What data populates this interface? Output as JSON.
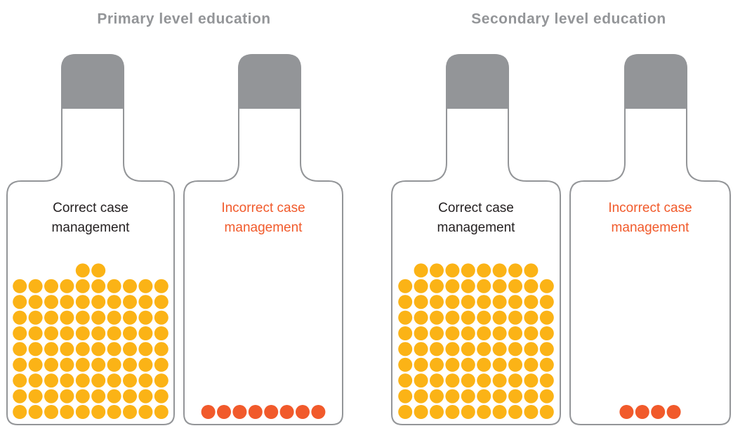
{
  "panels": [
    {
      "title": "Primary level education",
      "bottles": [
        {
          "label": [
            "Correct case",
            "management"
          ],
          "count": 92,
          "color": "#fbb316",
          "label_color": "#231f20"
        },
        {
          "label": [
            "Incorrect case",
            "management"
          ],
          "count": 8,
          "color": "#f15a2b",
          "label_color": "#f15a2b"
        }
      ]
    },
    {
      "title": "Secondary level education",
      "bottles": [
        {
          "label": [
            "Correct case",
            "management"
          ],
          "count": 98,
          "color": "#fbb316",
          "label_color": "#231f20"
        },
        {
          "label": [
            "Incorrect case",
            "management"
          ],
          "count": 4,
          "color": "#f15a2b",
          "label_color": "#f15a2b"
        }
      ]
    }
  ]
}
